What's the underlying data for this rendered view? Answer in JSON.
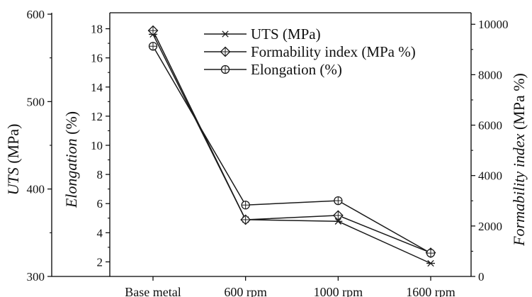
{
  "chart_data": {
    "type": "line",
    "categories": [
      "Base metal",
      "600 rpm",
      "1000 rpm",
      "1600 rpm"
    ],
    "axes": {
      "uts": {
        "label": "UTS (MPa)",
        "label_italic": "UTS",
        "label_rest": " (MPa)",
        "range": [
          300,
          600
        ],
        "ticks": [
          "300",
          "400",
          "500",
          "600"
        ],
        "tick_values": [
          300,
          400,
          500,
          600
        ]
      },
      "elongation": {
        "label": "Elongation (%)",
        "label_italic": "Elongation",
        "label_rest": " (%)",
        "range": [
          1,
          19
        ],
        "ticks": [
          "2",
          "4",
          "6",
          "8",
          "10",
          "12",
          "14",
          "16",
          "18"
        ],
        "tick_values": [
          2,
          4,
          6,
          8,
          10,
          12,
          14,
          16,
          18
        ]
      },
      "formability": {
        "label": "Formability index (MPa %)",
        "label_italic": "Formability index",
        "label_rest": " (MPa %)",
        "range": [
          0,
          10400
        ],
        "ticks": [
          "0",
          "2000",
          "4000",
          "6000",
          "8000",
          "10000"
        ],
        "tick_values": [
          0,
          2000,
          4000,
          6000,
          8000,
          10000
        ]
      }
    },
    "series": [
      {
        "name": "UTS (MPa)",
        "axis": "uts",
        "marker": "asterisk",
        "values": [
          577,
          365,
          363,
          315
        ]
      },
      {
        "name": "Formability index (MPa %)",
        "axis": "formability",
        "marker": "diamond-plus",
        "values": [
          9750,
          2250,
          2420,
          940
        ]
      },
      {
        "name": "Elongation (%)",
        "axis": "elongation",
        "marker": "circle-plus",
        "values": [
          16.8,
          5.9,
          6.2,
          2.6
        ]
      }
    ],
    "legend_position": "top-center",
    "grid": false,
    "colors": {
      "line": "#1a1a1a",
      "marker": "#1a1a1a",
      "axis": "#000000"
    }
  }
}
